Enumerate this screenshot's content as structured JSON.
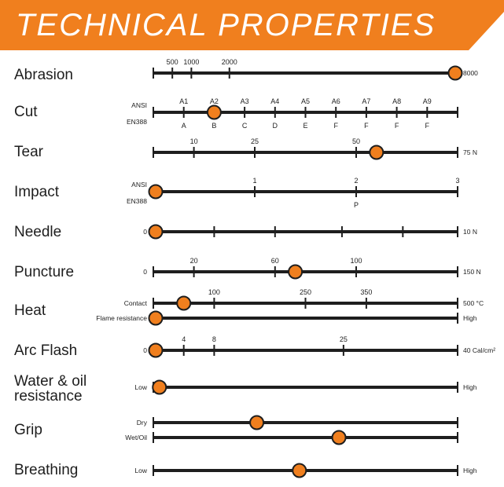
{
  "title": "TECHNICAL PROPERTIES",
  "colors": {
    "accent": "#f07f1e",
    "line": "#1e1e1e",
    "marker_stroke": "#1e1e1e"
  },
  "chart_data": {
    "type": "scatter",
    "title": "TECHNICAL PROPERTIES",
    "properties": [
      {
        "name": "Abrasion",
        "lines": [
          {
            "min": 0,
            "max": 8000,
            "end_label": "8000",
            "ticks": [
              {
                "v": 500,
                "top": "500"
              },
              {
                "v": 1000,
                "top": "1000"
              },
              {
                "v": 2000,
                "top": "2000"
              }
            ],
            "value": 8000
          }
        ]
      },
      {
        "name": "Cut",
        "lines": [
          {
            "scale": "ordinal",
            "ordinal_count": 10,
            "start_top": "ANSI",
            "start_bottom": "EN388",
            "ticks": [
              {
                "i": 1,
                "top": "A1",
                "bottom": "A"
              },
              {
                "i": 2,
                "top": "A2",
                "bottom": "B"
              },
              {
                "i": 3,
                "top": "A3",
                "bottom": "C"
              },
              {
                "i": 4,
                "top": "A4",
                "bottom": "D"
              },
              {
                "i": 5,
                "top": "A5",
                "bottom": "E"
              },
              {
                "i": 6,
                "top": "A6",
                "bottom": "F"
              },
              {
                "i": 7,
                "top": "A7",
                "bottom": "F"
              },
              {
                "i": 8,
                "top": "A8",
                "bottom": "F"
              },
              {
                "i": 9,
                "top": "A9",
                "bottom": "F"
              }
            ],
            "value_index": 2,
            "value_label": "A2 / B"
          }
        ]
      },
      {
        "name": "Tear",
        "lines": [
          {
            "min": 0,
            "max": 75,
            "end_label": "75 N",
            "ticks": [
              {
                "v": 10,
                "top": "10"
              },
              {
                "v": 25,
                "top": "25"
              },
              {
                "v": 50,
                "top": "50"
              }
            ],
            "value": 55
          }
        ]
      },
      {
        "name": "Impact",
        "lines": [
          {
            "scale": "ordinal",
            "ordinal_count": 3,
            "start_top": "ANSI",
            "start_bottom": "EN388",
            "ticks": [
              {
                "i": 1,
                "top": "1"
              },
              {
                "i": 2,
                "top": "2",
                "bottom": "P"
              },
              {
                "i": 3,
                "top": "3"
              }
            ],
            "value_index": 0
          }
        ]
      },
      {
        "name": "Needle",
        "lines": [
          {
            "min": 0,
            "max": 10,
            "start_label": "0",
            "end_label": "10 N",
            "ticks": [
              {
                "v": 2
              },
              {
                "v": 4
              },
              {
                "v": 6.2
              },
              {
                "v": 8.2
              }
            ],
            "value": 0
          }
        ]
      },
      {
        "name": "Puncture",
        "lines": [
          {
            "min": 0,
            "max": 150,
            "start_label": "0",
            "end_label": "150 N",
            "ticks": [
              {
                "v": 20,
                "top": "20"
              },
              {
                "v": 60,
                "top": "60"
              },
              {
                "v": 100,
                "top": "100"
              }
            ],
            "value": 70
          }
        ]
      },
      {
        "name": "Heat",
        "lines": [
          {
            "min": 0,
            "max": 500,
            "start_label": "Contact",
            "end_label": "500 °C",
            "ticks": [
              {
                "v": 100,
                "top": "100"
              },
              {
                "v": 250,
                "top": "250"
              },
              {
                "v": 350,
                "top": "350"
              }
            ],
            "value": 50
          },
          {
            "min": 0,
            "max": 1,
            "start_label": "Flame resistance",
            "end_label": "High",
            "ticks": [],
            "value": 0
          }
        ]
      },
      {
        "name": "Arc Flash",
        "lines": [
          {
            "min": 0,
            "max": 40,
            "start_label": "0",
            "end_label": "40 Cal/cm²",
            "ticks": [
              {
                "v": 4,
                "top": "4"
              },
              {
                "v": 8,
                "top": "8"
              },
              {
                "v": 25,
                "top": "25"
              }
            ],
            "value": 0
          }
        ]
      },
      {
        "name": "Water & oil resistance",
        "name_lines": [
          "Water & oil",
          "resistance"
        ],
        "lines": [
          {
            "min": 0,
            "max": 1,
            "start_label": "Low",
            "end_label": "High",
            "ticks": [],
            "value": 0.02
          }
        ]
      },
      {
        "name": "Grip",
        "lines": [
          {
            "min": 0,
            "max": 1,
            "start_label": "Dry",
            "ticks": [],
            "value": 0.34
          },
          {
            "min": 0,
            "max": 1,
            "start_label": "Wet/Oil",
            "ticks": [],
            "value": 0.61
          }
        ]
      },
      {
        "name": "Breathing",
        "lines": [
          {
            "min": 0,
            "max": 1,
            "start_label": "Low",
            "end_label": "High",
            "ticks": [],
            "value": 0.48
          }
        ]
      }
    ]
  }
}
